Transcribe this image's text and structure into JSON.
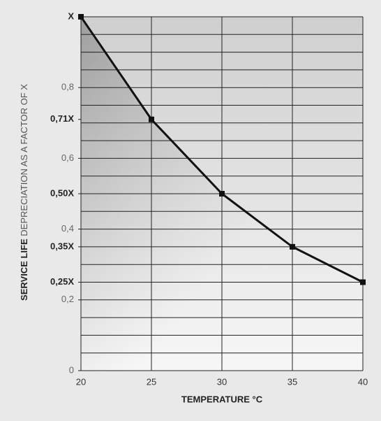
{
  "chart_data": {
    "type": "line",
    "y_label_bold": "SERVICE LIFE",
    "y_label": "DEPRECIATION AS A FACTOR OF X",
    "x_label": "TEMPERATURE °C",
    "x": [
      20,
      25,
      30,
      35,
      40
    ],
    "series": [
      {
        "color": "#111111",
        "values": [
          1,
          0.71,
          0.5,
          0.35,
          0.25
        ]
      }
    ],
    "xlim": [
      20,
      40
    ],
    "xticks": [
      20,
      25,
      30,
      35,
      40
    ],
    "ylim": [
      0,
      1
    ],
    "yticks": [
      {
        "value": 1,
        "label": "X"
      },
      {
        "value": 0.8,
        "label": "0,8"
      },
      {
        "value": 0.71,
        "label": "0,71X"
      },
      {
        "value": 0.6,
        "label": "0,6"
      },
      {
        "value": 0.5,
        "label": "0,50X"
      },
      {
        "value": 0.4,
        "label": "0,4"
      },
      {
        "value": 0.35,
        "label": "0,35X"
      },
      {
        "value": 0.25,
        "label": "0,25X"
      },
      {
        "value": 0.2,
        "label": "0,2"
      },
      0
    ],
    "ygrid": [
      0,
      0.05,
      0.1,
      0.15,
      0.2,
      0.25,
      0.3,
      0.35,
      0.4,
      0.45,
      0.5,
      0.55,
      0.6,
      0.65,
      0.7,
      0.75,
      0.8,
      0.85,
      0.9,
      0.95,
      1
    ],
    "grid": true
  }
}
